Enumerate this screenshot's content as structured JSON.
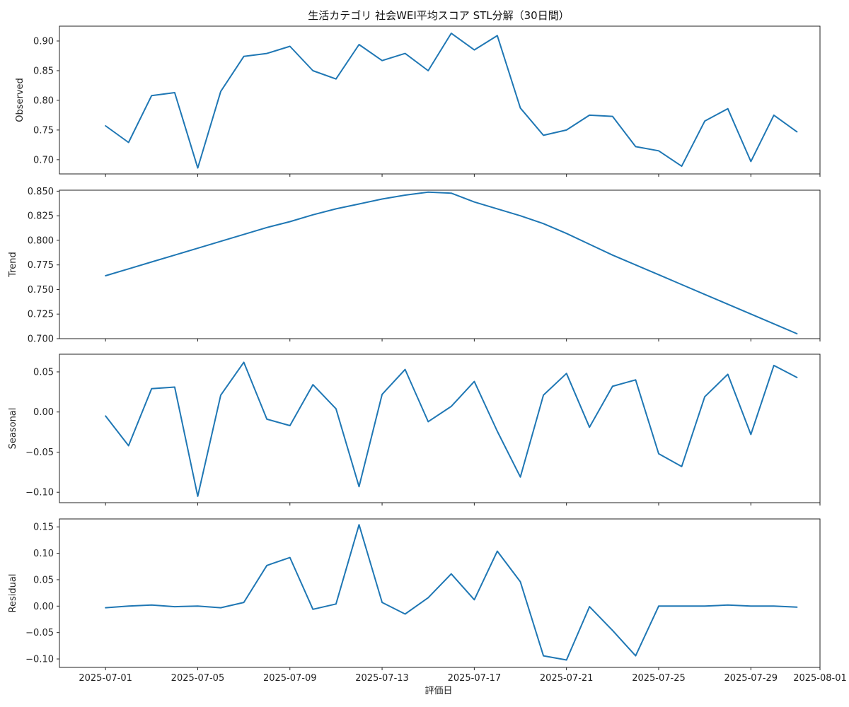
{
  "title": "生活カテゴリ 社会WEI平均スコア STL分解（30日間）",
  "xlabel": "評価日",
  "colors": {
    "line": "#1f77b4",
    "axis": "#222222"
  },
  "x_ticks": [
    "2025-07-01",
    "2025-07-05",
    "2025-07-09",
    "2025-07-13",
    "2025-07-17",
    "2025-07-21",
    "2025-07-25",
    "2025-07-29",
    "2025-08-01"
  ],
  "chart_data": {
    "type": "line",
    "title": "生活カテゴリ 社会WEI平均スコア STL分解（30日間）",
    "xlabel": "評価日",
    "x": [
      "2025-07-01",
      "2025-07-02",
      "2025-07-03",
      "2025-07-04",
      "2025-07-05",
      "2025-07-06",
      "2025-07-07",
      "2025-07-08",
      "2025-07-09",
      "2025-07-10",
      "2025-07-11",
      "2025-07-12",
      "2025-07-13",
      "2025-07-14",
      "2025-07-15",
      "2025-07-16",
      "2025-07-17",
      "2025-07-18",
      "2025-07-19",
      "2025-07-20",
      "2025-07-21",
      "2025-07-22",
      "2025-07-23",
      "2025-07-24",
      "2025-07-25",
      "2025-07-26",
      "2025-07-27",
      "2025-07-28",
      "2025-07-29",
      "2025-07-30",
      "2025-07-31"
    ],
    "xlim": [
      "2025-06-29",
      "2025-08-01"
    ],
    "grid": false,
    "panels": [
      {
        "ylabel": "Observed",
        "ylim": [
          0.676,
          0.925
        ],
        "yticks": [
          0.7,
          0.75,
          0.8,
          0.85,
          0.9
        ],
        "ytick_labels": [
          "0.70",
          "0.75",
          "0.80",
          "0.85",
          "0.90"
        ],
        "values": [
          0.757,
          0.729,
          0.808,
          0.813,
          0.686,
          0.815,
          0.874,
          0.879,
          0.891,
          0.85,
          0.836,
          0.894,
          0.867,
          0.879,
          0.85,
          0.913,
          0.885,
          0.909,
          0.787,
          0.741,
          0.75,
          0.775,
          0.773,
          0.722,
          0.715,
          0.689,
          0.765,
          0.786,
          0.697,
          0.775,
          0.747
        ]
      },
      {
        "ylabel": "Trend",
        "ylim": [
          0.7,
          0.851
        ],
        "yticks": [
          0.7,
          0.725,
          0.75,
          0.775,
          0.8,
          0.825,
          0.85
        ],
        "ytick_labels": [
          "0.700",
          "0.725",
          "0.750",
          "0.775",
          "0.800",
          "0.825",
          "0.850"
        ],
        "values": [
          0.764,
          0.771,
          0.778,
          0.785,
          0.792,
          0.799,
          0.806,
          0.813,
          0.819,
          0.826,
          0.832,
          0.837,
          0.842,
          0.846,
          0.849,
          0.848,
          0.839,
          0.832,
          0.825,
          0.817,
          0.807,
          0.796,
          0.785,
          0.775,
          0.765,
          0.755,
          0.745,
          0.735,
          0.725,
          0.715,
          0.705
        ]
      },
      {
        "ylabel": "Seasonal",
        "ylim": [
          -0.113,
          0.072
        ],
        "yticks": [
          -0.1,
          -0.05,
          0.0,
          0.05
        ],
        "ytick_labels": [
          "−0.10",
          "−0.05",
          "0.00",
          "0.05"
        ],
        "values": [
          -0.005,
          -0.042,
          0.029,
          0.031,
          -0.105,
          0.021,
          0.062,
          -0.009,
          -0.017,
          0.034,
          0.004,
          -0.093,
          0.022,
          0.053,
          -0.012,
          0.007,
          0.038,
          -0.024,
          -0.081,
          0.021,
          0.048,
          -0.019,
          0.032,
          0.04,
          -0.052,
          -0.068,
          0.019,
          0.047,
          -0.028,
          0.058,
          0.043
        ]
      },
      {
        "ylabel": "Residual",
        "ylim": [
          -0.116,
          0.165
        ],
        "yticks": [
          -0.1,
          -0.05,
          0.0,
          0.05,
          0.1,
          0.15
        ],
        "ytick_labels": [
          "−0.10",
          "−0.05",
          "0.00",
          "0.05",
          "0.10",
          "0.15"
        ],
        "values": [
          -0.003,
          0.0,
          0.002,
          -0.001,
          0.0,
          -0.003,
          0.007,
          0.077,
          0.092,
          -0.006,
          0.004,
          0.154,
          0.007,
          -0.015,
          0.016,
          0.061,
          0.012,
          0.104,
          0.046,
          -0.094,
          -0.102,
          -0.001,
          -0.046,
          -0.094,
          0.0,
          0.0,
          0.0,
          0.002,
          0.0,
          0.0,
          -0.002
        ]
      }
    ]
  }
}
